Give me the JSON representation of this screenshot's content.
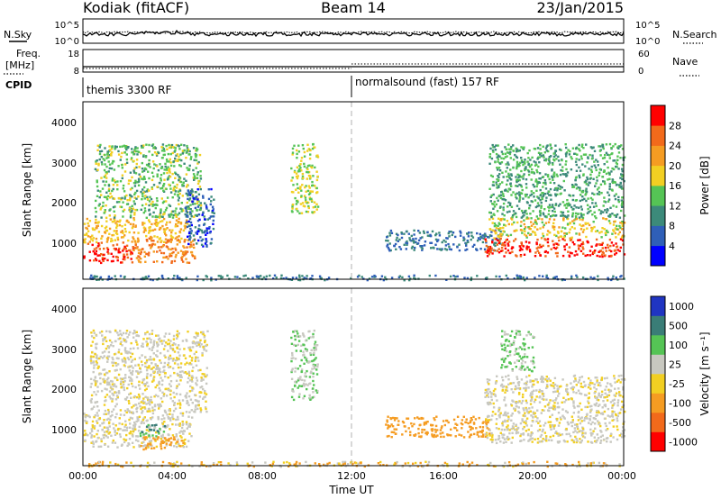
{
  "header": {
    "station": "Kodiak (fitACF)",
    "beam": "Beam 14",
    "date": "23/Jan/2015"
  },
  "sky_panel": {
    "left_label": "N.Sky",
    "right_label": "N.Search",
    "left_ticks": [
      "10^5",
      "10^0"
    ],
    "right_ticks": [
      "10^5",
      "10^0"
    ]
  },
  "freq_panel": {
    "left_label_1": "Freq.",
    "left_label_2": "[MHz]",
    "right_label": "Nave",
    "left_ticks": [
      "18",
      "8"
    ],
    "right_ticks": [
      "60",
      "0"
    ]
  },
  "cpid": {
    "label": "CPID",
    "segments": [
      {
        "name": "themis 3300 RF",
        "start_hour": 0,
        "end_hour": 12
      },
      {
        "name": "normalsound (fast) 157 RF",
        "start_hour": 12,
        "end_hour": 24
      }
    ]
  },
  "x_axis": {
    "label": "Time UT",
    "ticks": [
      "00:00",
      "04:00",
      "08:00",
      "12:00",
      "16:00",
      "20:00",
      "00:00"
    ]
  },
  "y_axis": {
    "label": "Slant Range [km]",
    "ticks": [
      "1000",
      "2000",
      "3000",
      "4000"
    ]
  },
  "power_colorbar": {
    "label": "Power [dB]",
    "ticks": [
      "4",
      "8",
      "12",
      "16",
      "20",
      "24",
      "28"
    ],
    "colors": [
      "#0000ff",
      "#2f5fb8",
      "#3c8a7a",
      "#55c455",
      "#f2cf22",
      "#f59c22",
      "#f26a1b",
      "#ff0000"
    ]
  },
  "velocity_colorbar": {
    "label": "Velocity [m s⁻¹]",
    "ticks": [
      "1000",
      "500",
      "100",
      "25",
      "-25",
      "-100",
      "-500",
      "-1000"
    ],
    "colors": [
      "#2035c2",
      "#3a7d77",
      "#55c455",
      "#c8c8c0",
      "#f2cf22",
      "#f59c22",
      "#f26a1b",
      "#ff0000"
    ]
  },
  "chart_data": [
    {
      "type": "heatmap",
      "title": "",
      "quantity": "Power [dB]",
      "xlabel": "Time UT",
      "ylabel": "Slant Range [km]",
      "xlim_hours": [
        0,
        24
      ],
      "ylim_km": [
        180,
        4500
      ],
      "scatter_regions": [
        {
          "t": [
            0.0,
            2.2
          ],
          "r": [
            600,
            1100
          ],
          "power_db": 28
        },
        {
          "t": [
            0.0,
            4.6
          ],
          "r": [
            1100,
            1700
          ],
          "power_db": 20
        },
        {
          "t": [
            2.2,
            5.0
          ],
          "r": [
            600,
            1200
          ],
          "power_db": 24
        },
        {
          "t": [
            0.5,
            5.2
          ],
          "r": [
            1700,
            3500
          ],
          "power_db": 14
        },
        {
          "t": [
            4.5,
            5.8
          ],
          "r": [
            1000,
            2400
          ],
          "power_db": 6
        },
        {
          "t": [
            9.2,
            10.4
          ],
          "r": [
            1800,
            3500
          ],
          "power_db": 16
        },
        {
          "t": [
            13.4,
            18.5
          ],
          "r": [
            900,
            1400
          ],
          "power_db": 8
        },
        {
          "t": [
            17.8,
            24.0
          ],
          "r": [
            750,
            1200
          ],
          "power_db": 28
        },
        {
          "t": [
            18.0,
            24.0
          ],
          "r": [
            1200,
            1700
          ],
          "power_db": 18
        },
        {
          "t": [
            18.0,
            24.0
          ],
          "r": [
            1700,
            3500
          ],
          "power_db": 12
        },
        {
          "t": [
            0.0,
            24.0
          ],
          "r": [
            180,
            300
          ],
          "power_db": 8
        }
      ]
    },
    {
      "type": "heatmap",
      "title": "",
      "quantity": "Velocity [m s⁻¹]",
      "xlabel": "Time UT",
      "ylabel": "Slant Range [km]",
      "xlim_hours": [
        0,
        24
      ],
      "ylim_km": [
        180,
        4500
      ],
      "scatter_regions": [
        {
          "t": [
            0.0,
            4.8
          ],
          "r": [
            650,
            1500
          ],
          "velocity": 0
        },
        {
          "t": [
            0.3,
            5.5
          ],
          "r": [
            1500,
            3500
          ],
          "velocity": 0
        },
        {
          "t": [
            2.5,
            3.6
          ],
          "r": [
            900,
            1200
          ],
          "velocity": 300
        },
        {
          "t": [
            2.5,
            4.5
          ],
          "r": [
            600,
            900
          ],
          "velocity": -200
        },
        {
          "t": [
            9.2,
            10.4
          ],
          "r": [
            1800,
            3500
          ],
          "velocity": 50
        },
        {
          "t": [
            13.4,
            18.0
          ],
          "r": [
            900,
            1400
          ],
          "velocity": -150
        },
        {
          "t": [
            17.8,
            24.0
          ],
          "r": [
            750,
            2400
          ],
          "velocity": 0
        },
        {
          "t": [
            18.5,
            20.0
          ],
          "r": [
            2500,
            3500
          ],
          "velocity": 80
        },
        {
          "t": [
            0.0,
            24.0
          ],
          "r": [
            180,
            300
          ],
          "velocity": -60
        }
      ]
    }
  ]
}
